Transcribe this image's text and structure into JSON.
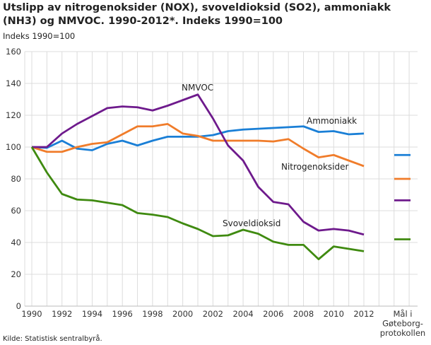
{
  "chart_data": {
    "type": "line",
    "title": "Utslipp av nitrogenoksider (NOX), svoveldioksid (SO2), ammoniakk (NH3) og NMVOC. 1990-2012*. Indeks 1990=100",
    "ylabel": "Indeks 1990=100",
    "source": "Kilde: Statistisk sentralbyrå.",
    "ylim": [
      0,
      160
    ],
    "yticks": [
      0,
      20,
      40,
      60,
      80,
      100,
      120,
      140,
      160
    ],
    "x": [
      1990,
      1991,
      1992,
      1993,
      1994,
      1995,
      1996,
      1997,
      1998,
      1999,
      2000,
      2001,
      2002,
      2003,
      2004,
      2005,
      2006,
      2007,
      2008,
      2009,
      2010,
      2011,
      2012
    ],
    "xticks": [
      "1990",
      "1992",
      "1994",
      "1996",
      "1998",
      "2000",
      "2002",
      "2004",
      "2006",
      "2008",
      "2010",
      "2012"
    ],
    "target_label": "Mål i Gøteborg-protokollen",
    "grid": true,
    "series": [
      {
        "name": "Ammoniakk",
        "color": "#1a7fd6",
        "values": [
          100,
          99.5,
          104,
          99,
          98,
          102,
          104,
          101,
          104,
          106.5,
          106.5,
          106.5,
          107.5,
          110,
          111,
          111.5,
          112,
          112.5,
          113,
          109.5,
          110,
          108,
          108.5
        ],
        "target": 95
      },
      {
        "name": "Nitrogenoksider",
        "color": "#f07c2a",
        "values": [
          100,
          97,
          97,
          100,
          102,
          103,
          108,
          113,
          113,
          114.5,
          108.5,
          107,
          104,
          104,
          104,
          104,
          103.5,
          105,
          99,
          93.5,
          95,
          91.5,
          88
        ],
        "target": 80
      },
      {
        "name": "NMVOC",
        "color": "#6e1a8c",
        "values": [
          100,
          100,
          108.5,
          114.5,
          119.5,
          124.5,
          125.5,
          125,
          123,
          126,
          129.5,
          133,
          118,
          101,
          91.5,
          75,
          65.5,
          64,
          53,
          47.5,
          48.5,
          47.5,
          45
        ],
        "target": 66.5
      },
      {
        "name": "Svoveldioksid",
        "color": "#3f8a10",
        "values": [
          100,
          84,
          70.5,
          67,
          66.5,
          65,
          63.5,
          58.5,
          57.5,
          56,
          52,
          48.5,
          44,
          44.5,
          48,
          45.5,
          40.5,
          38.5,
          38.5,
          29.5,
          37.5,
          36,
          34.5
        ],
        "target": 42
      }
    ]
  }
}
